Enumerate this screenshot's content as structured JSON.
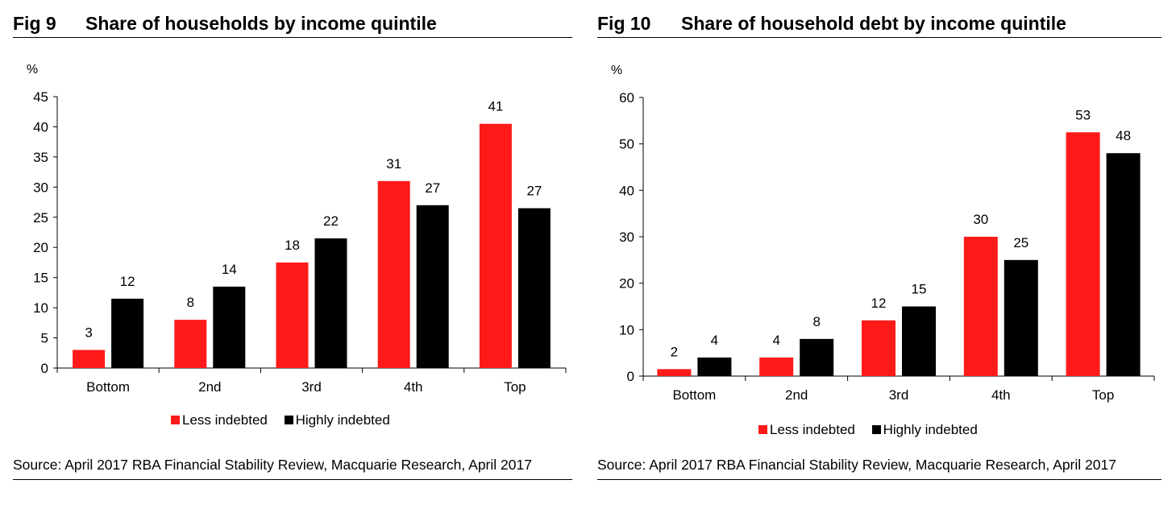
{
  "colors": {
    "less": "#ff1a1a",
    "high": "#000000"
  },
  "figures": [
    {
      "number": "Fig 9",
      "title": "Share of households by income quintile",
      "source": "Source: April 2017 RBA Financial Stability Review, Macquarie Research, April 2017",
      "chart_data": {
        "type": "bar",
        "title": "Share of households by income quintile",
        "ylabel": "%",
        "xlabel": "",
        "ylim": [
          0,
          45
        ],
        "yticks": [
          0,
          5,
          10,
          15,
          20,
          25,
          30,
          35,
          40,
          45
        ],
        "categories": [
          "Bottom",
          "2nd",
          "3rd",
          "4th",
          "Top"
        ],
        "series": [
          {
            "name": "Less indebted",
            "values": [
              3,
              8,
              17.5,
              31,
              40.5
            ],
            "labels": [
              "3",
              "8",
              "18",
              "31",
              "41"
            ]
          },
          {
            "name": "Highly indebted",
            "values": [
              11.5,
              13.5,
              21.5,
              27,
              26.5
            ],
            "labels": [
              "12",
              "14",
              "22",
              "27",
              "27"
            ]
          }
        ],
        "legend": "bottom-center",
        "grid": false
      }
    },
    {
      "number": "Fig 10",
      "title": "Share of household debt by income quintile",
      "source": "Source: April 2017 RBA Financial Stability Review, Macquarie Research, April 2017",
      "chart_data": {
        "type": "bar",
        "title": "Share of household debt by income quintile",
        "ylabel": "%",
        "xlabel": "",
        "ylim": [
          0,
          60
        ],
        "yticks": [
          0,
          10,
          20,
          30,
          40,
          50,
          60
        ],
        "categories": [
          "Bottom",
          "2nd",
          "3rd",
          "4th",
          "Top"
        ],
        "series": [
          {
            "name": "Less indebted",
            "values": [
              1.5,
              4,
              12,
              30,
              52.5
            ],
            "labels": [
              "2",
              "4",
              "12",
              "30",
              "53"
            ]
          },
          {
            "name": "Highly indebted",
            "values": [
              4,
              8,
              15,
              25,
              48
            ],
            "labels": [
              "4",
              "8",
              "15",
              "25",
              "48"
            ]
          }
        ],
        "legend": "bottom-center",
        "grid": false
      }
    }
  ]
}
